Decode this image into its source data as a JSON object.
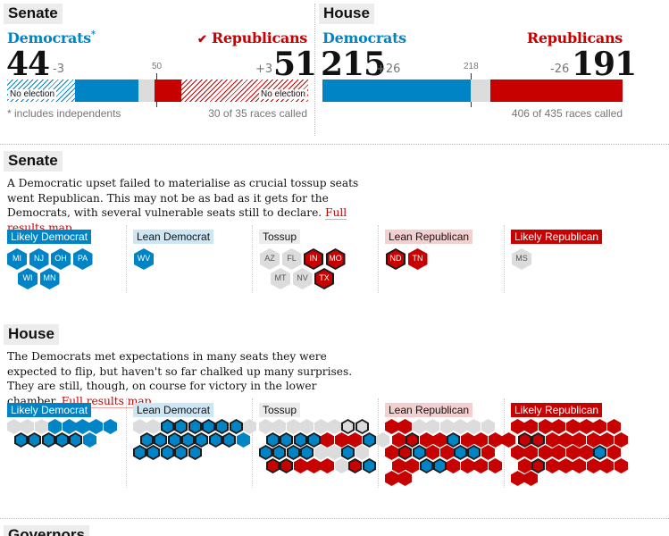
{
  "colors": {
    "dem": "#0084c6",
    "rep": "#c70000",
    "grey": "#dcdcdc"
  },
  "senate_summary": {
    "title": "Senate",
    "dem_label": "Democrats",
    "dem_asterisk": "*",
    "dem_total": "44",
    "dem_change": "-3",
    "rep_check": "✔",
    "rep_label": "Republicans",
    "rep_total": "51",
    "rep_change": "+3",
    "majority_label": "50",
    "dem_no_election": "No election",
    "rep_no_election": "No election",
    "footnote": "* includes independents",
    "called": "30 of 35 races called"
  },
  "house_summary": {
    "title": "House",
    "dem_label": "Democrats",
    "dem_total": "215",
    "dem_change": "+26",
    "rep_label": "Republicans",
    "rep_total": "191",
    "rep_change": "-26",
    "majority_label": "218",
    "called": "406 of 435 races called"
  },
  "senate_detail": {
    "title": "Senate",
    "text": "A Democratic upset failed to materialise as crucial tossup seats went Republican. This may not be as bad as it gets for the Democrats, with several vulnerable seats still to declare.",
    "link": "Full results map",
    "categories": [
      "Likely Democrat",
      "Lean Democrat",
      "Tossup",
      "Lean Republican",
      "Likely Republican"
    ],
    "states": {
      "likely_dem": [
        "MI",
        "NJ",
        "OH",
        "PA",
        "WI",
        "MN"
      ],
      "lean_dem": [
        "WV"
      ],
      "tossup": [
        "AZ",
        "FL",
        "IN",
        "MO",
        "MT",
        "NV",
        "TX"
      ],
      "lean_rep": [
        "ND",
        "TN"
      ],
      "likely_rep": [
        "MS"
      ]
    }
  },
  "house_detail": {
    "title": "House",
    "text": "The Democrats met expectations in many seats they were expected to flip, but haven't so far chalked up many surprises. They are still, though, on course for victory in the lower chamber.",
    "link": "Full results map",
    "categories": [
      "Likely Democrat",
      "Lean Democrat",
      "Tossup",
      "Lean Republican",
      "Likely Republican"
    ]
  },
  "governors": {
    "title": "Governors"
  }
}
